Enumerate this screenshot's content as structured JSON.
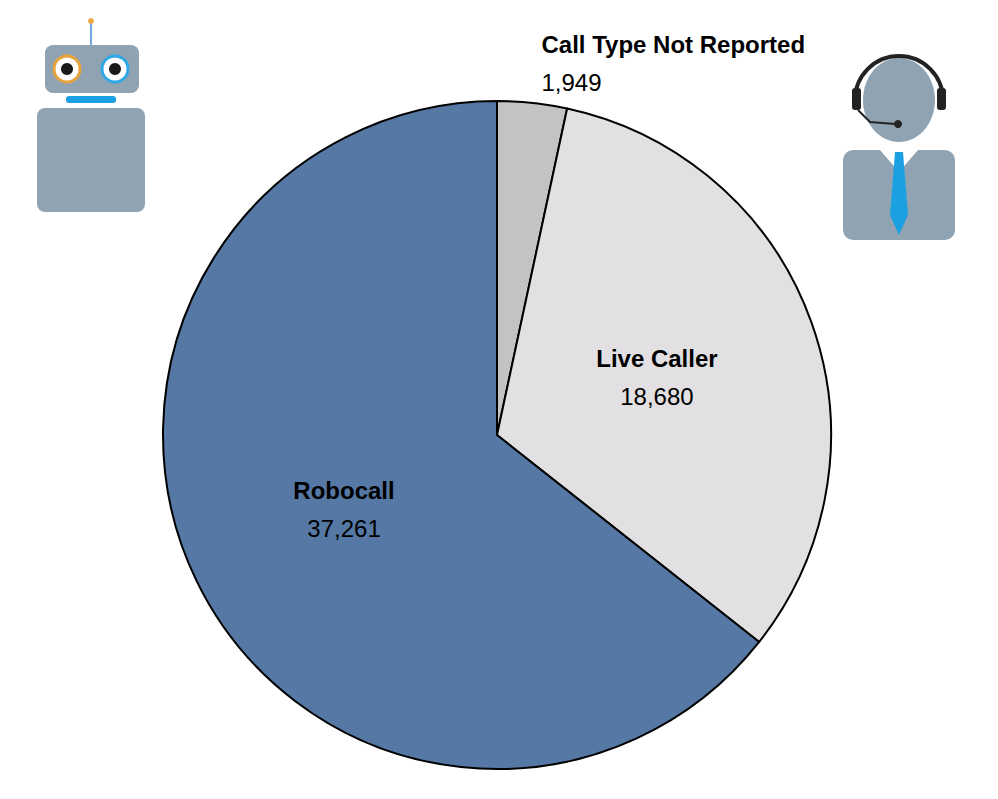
{
  "chart_data": {
    "type": "pie",
    "categories": [
      "Call Type Not Reported",
      "Live Caller",
      "Robocall"
    ],
    "values": [
      1949,
      18680,
      37261
    ],
    "value_labels": [
      "1,949",
      "18,680",
      "37,261"
    ],
    "colors": [
      "#c3c3c3",
      "#e2e0e2",
      "#5578a4"
    ],
    "data_labels": true
  }
}
